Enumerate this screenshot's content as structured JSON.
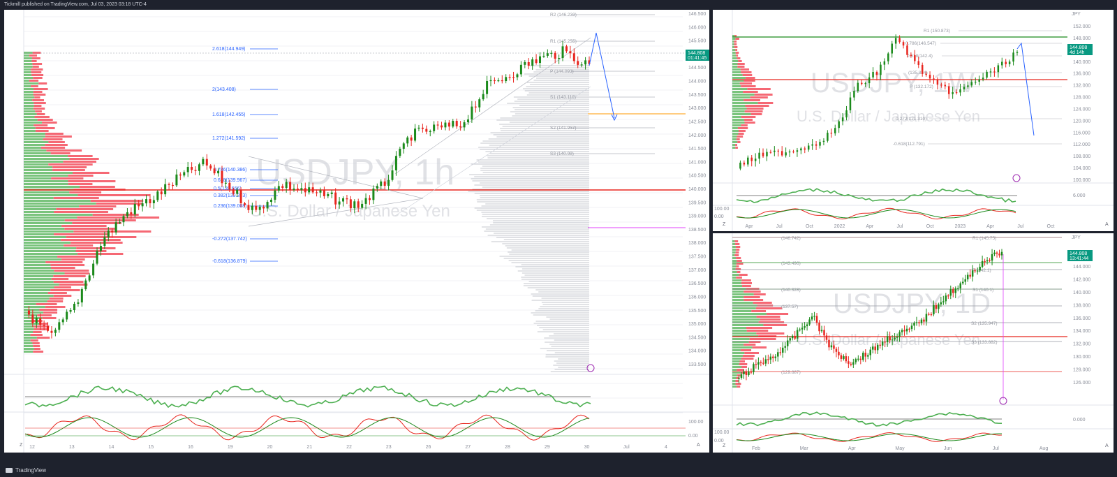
{
  "header": {
    "published_line": "Tickmill published on TradingView.com, Jul 03, 2023 03:18 UTC-4"
  },
  "footer": {
    "brand": "TradingView"
  },
  "main_chart": {
    "watermark_symbol": "USDJPY, 1h",
    "watermark_name": "U.S. Dollar / Japanese Yen",
    "current_price": "144.808",
    "countdown": "01:41:45",
    "price_axis": [
      "146.500",
      "146.000",
      "145.500",
      "145.000",
      "144.500",
      "144.000",
      "143.500",
      "143.000",
      "142.500",
      "142.000",
      "141.500",
      "141.000",
      "140.500",
      "140.000",
      "139.500",
      "139.000",
      "138.500",
      "138.000",
      "137.500",
      "137.000",
      "136.500",
      "136.000",
      "135.500",
      "135.000",
      "134.500",
      "134.000",
      "133.500"
    ],
    "time_axis": [
      "12",
      "13",
      "14",
      "15",
      "16",
      "19",
      "20",
      "21",
      "22",
      "23",
      "26",
      "27",
      "28",
      "29",
      "30",
      "Jul",
      "4"
    ],
    "fib_levels": [
      {
        "label": "2.618(144.949)"
      },
      {
        "label": "2(143.408)"
      },
      {
        "label": "1.618(142.455)"
      },
      {
        "label": "1.272(141.592)"
      },
      {
        "label": "0.618(139.967)"
      },
      {
        "label": "0.5(139.666)"
      },
      {
        "label": "0.382(139.373)"
      },
      {
        "label": "0.236(139.008)"
      },
      {
        "label": "0.786(140.386)"
      },
      {
        "label": "-0.272(137.742)"
      },
      {
        "label": "-0.618(136.879)"
      }
    ],
    "pivots": [
      {
        "label": "R2 (146.233)"
      },
      {
        "label": "R1 (145.255)"
      },
      {
        "label": "P (144.093)"
      },
      {
        "label": "S1 (143.118)"
      },
      {
        "label": "S2 (141.957)"
      },
      {
        "label": "S3 (140.98)"
      }
    ],
    "indicator_axis": [
      "100.00",
      "0.00"
    ],
    "nav_buttons": [
      "Z",
      "A"
    ]
  },
  "weekly_chart": {
    "watermark_symbol": "USDJPY, 1W",
    "watermark_name": "U.S. Dollar / Japanese Yen",
    "currency_label": "JPY",
    "current_price": "144.808",
    "countdown": "4d 14h",
    "price_axis": [
      "152.000",
      "148.000",
      "144.000",
      "140.000",
      "136.000",
      "132.000",
      "128.000",
      "124.000",
      "120.000",
      "116.000",
      "112.000",
      "108.000",
      "104.000",
      "100.000"
    ],
    "labels": [
      "R1 (150.873)",
      "0.786(146.547)",
      "0.618(142.4)",
      "(135.834)",
      "P (132.172)",
      "-0.272(121.310)",
      "-0.618(112.791)"
    ],
    "time_axis": [
      "Apr",
      "Jul",
      "Oct",
      "2022",
      "Apr",
      "Jul",
      "Oct",
      "2023",
      "Apr",
      "Jul",
      "Oct"
    ],
    "indicator_axis": [
      "6.000",
      "100.00",
      "0.00"
    ],
    "nav_buttons": [
      "Z",
      "A"
    ]
  },
  "daily_chart": {
    "watermark_symbol": "USDJPY, 1D",
    "watermark_name": "U.S. Dollar / Japanese Yen",
    "currency_label": "JPY",
    "current_price": "144.808",
    "countdown": "13:41:44",
    "price_axis": [
      "144.000",
      "142.000",
      "140.000",
      "138.000",
      "136.000",
      "134.000",
      "132.000",
      "130.000",
      "128.000",
      "126.000"
    ],
    "labels": [
      "(146.742)",
      "R1 (145.75)",
      "(143.496)",
      "P (142.1)",
      "(140.328)",
      "S1 (140.1)",
      "(137.57)",
      "S2 (135.947)",
      "S3 (133.882)",
      "(129.687)"
    ],
    "time_axis": [
      "Feb",
      "Mar",
      "Apr",
      "May",
      "Jun",
      "Jul",
      "Aug"
    ],
    "indicator_axis": [
      "0.000",
      "100.00",
      "0.00"
    ],
    "nav_buttons": [
      "Z",
      "A"
    ]
  },
  "colors": {
    "up": "#089981",
    "up_bright": "#1b8a1b",
    "down": "#e8261f",
    "volume_up": "#4caf50",
    "volume_down": "#f23645",
    "fib": "#2962ff",
    "price_box": "#089981"
  }
}
